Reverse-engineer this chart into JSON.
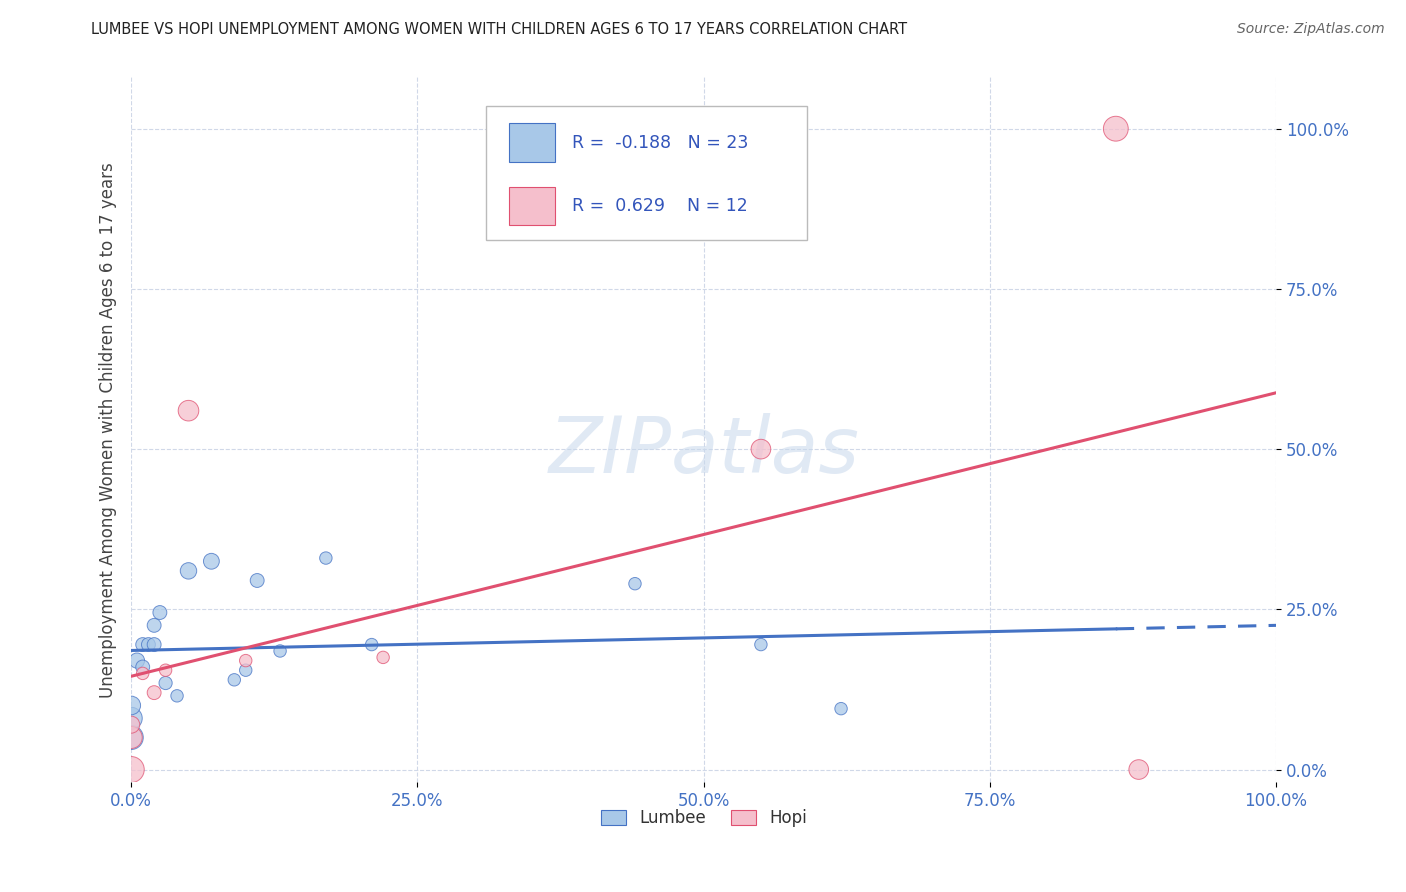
{
  "title": "LUMBEE VS HOPI UNEMPLOYMENT AMONG WOMEN WITH CHILDREN AGES 6 TO 17 YEARS CORRELATION CHART",
  "source": "Source: ZipAtlas.com",
  "ylabel": "Unemployment Among Women with Children Ages 6 to 17 years",
  "xlim": [
    0.0,
    1.0
  ],
  "ylim": [
    -0.02,
    1.08
  ],
  "xticks": [
    0.0,
    0.25,
    0.5,
    0.75,
    1.0
  ],
  "yticks": [
    0.0,
    0.25,
    0.5,
    0.75,
    1.0
  ],
  "xticklabels": [
    "0.0%",
    "25.0%",
    "50.0%",
    "75.0%",
    "100.0%"
  ],
  "yticklabels": [
    "0.0%",
    "25.0%",
    "50.0%",
    "75.0%",
    "100.0%"
  ],
  "background_color": "#ffffff",
  "lumbee_color": "#a8c8e8",
  "hopi_color": "#f5bfcc",
  "lumbee_line_color": "#4472c4",
  "hopi_line_color": "#e05070",
  "legend_R_lumbee": "-0.188",
  "legend_N_lumbee": "23",
  "legend_R_hopi": "0.629",
  "legend_N_hopi": "12",
  "lumbee_x": [
    0.0,
    0.0,
    0.0,
    0.005,
    0.01,
    0.01,
    0.015,
    0.02,
    0.02,
    0.025,
    0.03,
    0.04,
    0.05,
    0.07,
    0.09,
    0.1,
    0.11,
    0.13,
    0.17,
    0.21,
    0.44,
    0.55,
    0.62
  ],
  "lumbee_y": [
    0.05,
    0.08,
    0.1,
    0.17,
    0.16,
    0.195,
    0.195,
    0.195,
    0.225,
    0.245,
    0.135,
    0.115,
    0.31,
    0.325,
    0.14,
    0.155,
    0.295,
    0.185,
    0.33,
    0.195,
    0.29,
    0.195,
    0.095
  ],
  "lumbee_sizes": [
    300,
    250,
    180,
    120,
    100,
    100,
    100,
    100,
    100,
    100,
    90,
    80,
    140,
    130,
    80,
    80,
    100,
    80,
    80,
    80,
    80,
    80,
    80
  ],
  "hopi_x": [
    0.0,
    0.0,
    0.0,
    0.01,
    0.02,
    0.03,
    0.05,
    0.1,
    0.22,
    0.55,
    0.86,
    0.88
  ],
  "hopi_y": [
    0.0,
    0.05,
    0.07,
    0.15,
    0.12,
    0.155,
    0.56,
    0.17,
    0.175,
    0.5,
    1.0,
    0.0
  ],
  "hopi_sizes": [
    350,
    250,
    150,
    80,
    100,
    80,
    220,
    80,
    80,
    200,
    320,
    200
  ],
  "lumbee_line_x0": 0.0,
  "lumbee_line_x_solid_end": 0.86,
  "lumbee_line_x1": 1.0,
  "hopi_line_x0": 0.0,
  "hopi_line_x1": 1.0,
  "tick_color": "#4472c4",
  "grid_color": "#d0d8e8",
  "watermark_text": "ZIPatlas",
  "watermark_fontsize": 56
}
